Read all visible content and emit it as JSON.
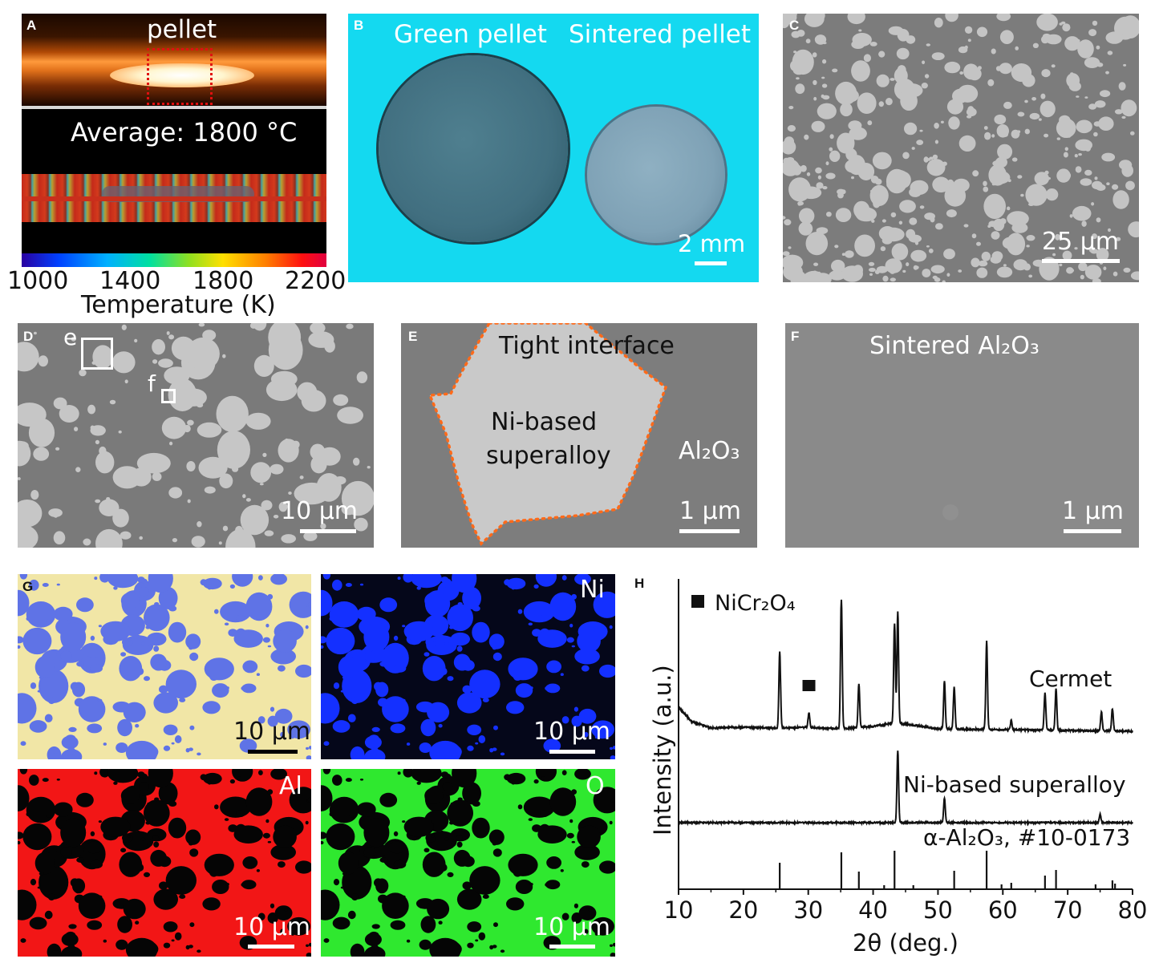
{
  "panels": {
    "A": {
      "label": "A",
      "top_title": "pellet",
      "average_text": "Average: 1800 °C",
      "colorbar_ticks": [
        "1000",
        "1400",
        "1800",
        "2200"
      ],
      "colorbar_title": "Temperature (K)"
    },
    "B": {
      "label": "B",
      "left_title": "Green pellet",
      "right_title": "Sintered pellet",
      "scale_text": "2 mm",
      "background_color": "#14d9f0"
    },
    "C": {
      "label": "C",
      "scale_text": "25 μm"
    },
    "D": {
      "label": "D",
      "scale_text": "10 μm",
      "box_e": "e",
      "box_f": "f"
    },
    "E": {
      "label": "E",
      "interface_text": "Tight interface",
      "alloy_line1": "Ni-based",
      "alloy_line2": "superalloy",
      "al2o3_text": "Al₂O₃",
      "scale_text": "1 μm",
      "outline_color": "#ff6a1a"
    },
    "F": {
      "label": "F",
      "title": "Sintered Al₂O₃",
      "scale_text": "1 μm"
    },
    "G": {
      "label": "G",
      "maps": [
        {
          "element": "",
          "scale_text": "10 μm",
          "bg": "#f1e6a6",
          "particle": "#5f73e6"
        },
        {
          "element": "Ni",
          "scale_text": "10 μm",
          "bg": "#05071a",
          "particle": "#1430ff"
        },
        {
          "element": "Al",
          "scale_text": "10 μm",
          "bg": "#f21616",
          "particle": "#050505"
        },
        {
          "element": "O",
          "scale_text": "10 μm",
          "bg": "#2fe82f",
          "particle": "#050505"
        }
      ]
    },
    "H": {
      "label": "H"
    }
  },
  "chart_data": {
    "type": "line",
    "xlabel": "2θ (deg.)",
    "ylabel": "Intensity (a.u.)",
    "xlim": [
      10,
      80
    ],
    "xticks": [
      "10",
      "20",
      "30",
      "40",
      "50",
      "60",
      "70",
      "80"
    ],
    "legend": {
      "marker": "square",
      "label": "NiCr₂O₄"
    },
    "series": [
      {
        "name": "Cermet",
        "baseline_points": [
          [
            10,
            0.3
          ],
          [
            12,
            0.12
          ],
          [
            15,
            0.04
          ],
          [
            20,
            0.05
          ],
          [
            25,
            0.04
          ],
          [
            30,
            0.05
          ],
          [
            35,
            0.03
          ],
          [
            40,
            0.06
          ],
          [
            43,
            0.1
          ],
          [
            45,
            0.09
          ],
          [
            50,
            0.03
          ],
          [
            60,
            0.02
          ],
          [
            70,
            0.01
          ],
          [
            80,
            0
          ]
        ],
        "peaks": [
          [
            25.6,
            0.95
          ],
          [
            30.1,
            0.18
          ],
          [
            35.1,
            1.62
          ],
          [
            37.8,
            0.55
          ],
          [
            43.3,
            1.25
          ],
          [
            43.8,
            1.4
          ],
          [
            51.0,
            0.6
          ],
          [
            52.5,
            0.52
          ],
          [
            57.5,
            1.1
          ],
          [
            61.3,
            0.12
          ],
          [
            66.5,
            0.46
          ],
          [
            68.2,
            0.52
          ],
          [
            75.2,
            0.24
          ],
          [
            76.9,
            0.28
          ]
        ],
        "marker_peak_x": 30.1
      },
      {
        "name": "Ni-based superalloy",
        "baseline_points": [
          [
            10,
            0
          ],
          [
            80,
            0
          ]
        ],
        "peaks": [
          [
            43.8,
            1.0
          ],
          [
            51.0,
            0.34
          ],
          [
            75.0,
            0.12
          ]
        ]
      },
      {
        "name": "α-Al₂O₃, #10-0173",
        "type": "reference_sticks",
        "sticks": [
          [
            25.6,
            0.66
          ],
          [
            35.1,
            0.92
          ],
          [
            37.8,
            0.44
          ],
          [
            41.7,
            0.1
          ],
          [
            43.3,
            0.96
          ],
          [
            46.2,
            0.1
          ],
          [
            52.5,
            0.46
          ],
          [
            57.5,
            0.96
          ],
          [
            59.8,
            0.12
          ],
          [
            61.3,
            0.16
          ],
          [
            66.5,
            0.34
          ],
          [
            68.2,
            0.48
          ],
          [
            74.3,
            0.12
          ],
          [
            76.9,
            0.22
          ],
          [
            77.3,
            0.14
          ]
        ]
      }
    ]
  }
}
